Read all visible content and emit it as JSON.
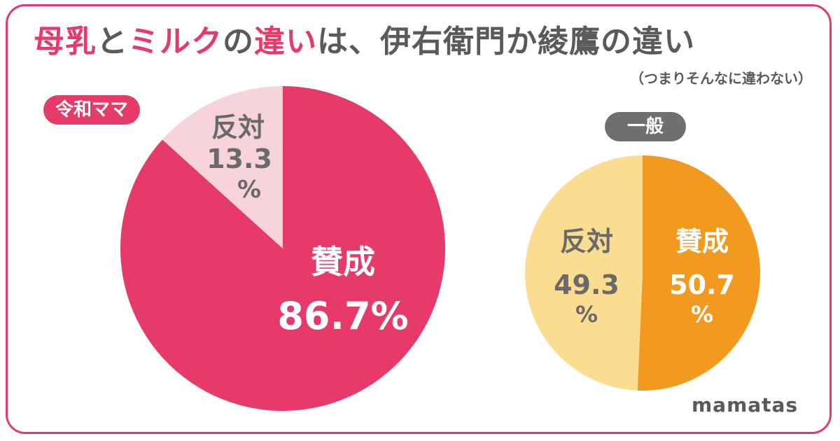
{
  "title": {
    "part1": "母乳",
    "part2": "と",
    "part3": "ミルク",
    "part4": "の",
    "part5": "違い",
    "part6": "は、伊右衛門か綾鷹の違い"
  },
  "subtitle": "（つまりそんなに違わない）",
  "brand": "mamatas",
  "colors": {
    "pink": "#e63a6a",
    "light_pink": "#f7d4db",
    "orange": "#f29a1f",
    "light_yellow": "#fbdd91",
    "gray_text": "#6a6a6a",
    "white": "#ffffff"
  },
  "chart_data": [
    {
      "type": "pie",
      "badge": "令和ママ",
      "slices": [
        {
          "label": "賛成",
          "value": 86.7,
          "value_text": "86.7%",
          "color": "#e63a6a"
        },
        {
          "label": "反対",
          "value": 13.3,
          "value_text": "13.3",
          "unit": "%",
          "color": "#f7d4db"
        }
      ]
    },
    {
      "type": "pie",
      "badge": "一般",
      "slices": [
        {
          "label": "賛成",
          "value": 50.7,
          "value_text": "50.7",
          "unit": "%",
          "color": "#f29a1f"
        },
        {
          "label": "反対",
          "value": 49.3,
          "value_text": "49.3",
          "unit": "%",
          "color": "#fbdd91"
        }
      ]
    }
  ]
}
